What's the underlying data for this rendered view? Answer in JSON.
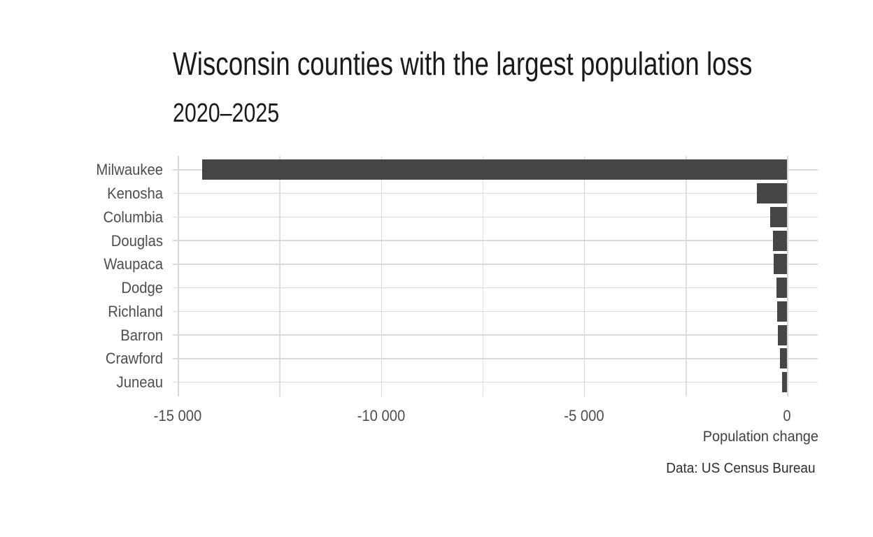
{
  "chart_data": {
    "type": "bar",
    "orientation": "horizontal",
    "title": "Wisconsin counties with the largest population loss",
    "subtitle": "2020–2025",
    "xlabel": "Population change",
    "caption": "Data: US Census Bureau",
    "categories": [
      "Milwaukee",
      "Kenosha",
      "Columbia",
      "Douglas",
      "Waupaca",
      "Dodge",
      "Richland",
      "Barron",
      "Crawford",
      "Juneau"
    ],
    "values": [
      -14400,
      -740,
      -415,
      -350,
      -335,
      -255,
      -250,
      -235,
      -170,
      -125
    ],
    "xlim": [
      -15125,
      745
    ],
    "x_major_ticks": [
      -15000,
      -10000,
      -5000,
      0
    ],
    "x_tick_labels": [
      "-15 000",
      "-10 000",
      "-5 000",
      "0"
    ],
    "x_minor_ticks": [
      -12500,
      -7500,
      -2500
    ],
    "grid": "major-and-minor-vertical, category-horizontal",
    "legend": "none",
    "colors": {
      "bar": "#454545",
      "grid_major": "#d6d6d6",
      "grid_minor": "#dedede",
      "grid_horizontal": "#d9d9d9",
      "axis_text": "#4d4d4d",
      "title_text": "#1a1a1a",
      "background": "#ffffff"
    }
  }
}
